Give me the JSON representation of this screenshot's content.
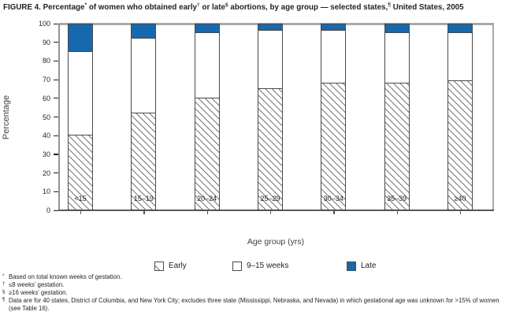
{
  "figure": {
    "title_plain": "FIGURE 4. Percentage* of women who obtained early† or late§ abortions, by age group — selected states,¶ United States, 2005",
    "title_parts": [
      {
        "text": "FIGURE 4. Percentage"
      },
      {
        "text": "*",
        "sup": true
      },
      {
        "text": " of women who obtained early"
      },
      {
        "text": "†",
        "sup": true
      },
      {
        "text": " or late"
      },
      {
        "text": "§",
        "sup": true
      },
      {
        "text": " abortions, by age group — selected states,"
      },
      {
        "text": "¶",
        "sup": true
      },
      {
        "text": " United States, 2005"
      }
    ]
  },
  "chart_data": {
    "type": "bar",
    "stacked": true,
    "title": "FIGURE 4. Percentage of women who obtained early or late abortions, by age group — selected states, United States, 2005",
    "categories": [
      "<15",
      "15–19",
      "20–24",
      "25–29",
      "30–34",
      "35–39",
      "≥40"
    ],
    "series": [
      {
        "name": "Early",
        "pattern": "hatch",
        "values": [
          40,
          52,
          60,
          65,
          68,
          68,
          69
        ]
      },
      {
        "name": "9–15 weeks",
        "pattern": "white",
        "values": [
          45,
          40,
          35,
          31,
          28,
          27,
          26
        ]
      },
      {
        "name": "Late",
        "pattern": "blue",
        "values": [
          15,
          8,
          5,
          4,
          4,
          5,
          5
        ]
      }
    ],
    "xlabel": "Age group (yrs)",
    "ylabel": "Percentage",
    "ylim": [
      0,
      100
    ],
    "ytick_step": 10,
    "grid": false,
    "legend_position": "bottom"
  },
  "footnotes": [
    {
      "marker": "*",
      "text": "Based on total known weeks of gestation."
    },
    {
      "marker": "†",
      "text": "≤8 weeks' gestation."
    },
    {
      "marker": "§",
      "text": "≥16 weeks' gestation."
    },
    {
      "marker": "¶",
      "text": "Data are for 40 states, District of Columbia, and New York City; excludes three state (Mississippi, Nebraska, and Nevada) in which gestational age was unknown for >15% of women (see Table 16)."
    }
  ],
  "colors": {
    "late_blue": "#1668af",
    "bar_border": "#4a4a4c",
    "hatch_line": "#77787b",
    "axis_light": "#a7a9ac",
    "axis_dark": "#58595b",
    "text": "#231f20"
  }
}
